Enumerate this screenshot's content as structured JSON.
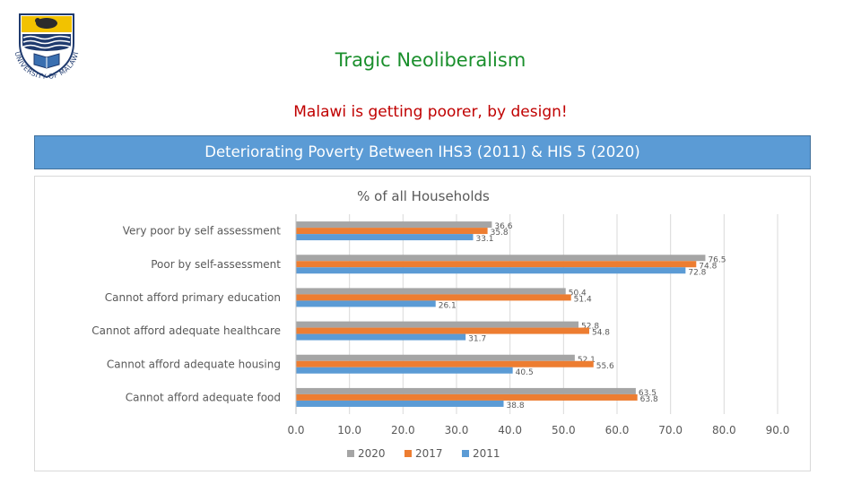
{
  "slide": {
    "title": "Tragic Neoliberalism",
    "subtitle": "Malawi is getting poorer, by design!",
    "banner": "Deteriorating Poverty Between IHS3 (2011) & HIS 5 (2020)"
  },
  "logo": {
    "text": "UNIVERSITY OF MALAWI",
    "icon": "university-crest-icon"
  },
  "colors": {
    "title": "#1a8f2c",
    "subtitle": "#c00000",
    "banner": "#5b9bd5"
  },
  "chart_data": {
    "type": "bar",
    "orientation": "horizontal",
    "title": "% of all Households",
    "categories": [
      "Very poor by self assessment",
      "Poor by self-assessment",
      "Cannot afford primary education",
      "Cannot afford adequate healthcare",
      "Cannot afford adequate housing",
      "Cannot afford adequate food"
    ],
    "series": [
      {
        "name": "2020",
        "color": "#a5a5a5",
        "values": [
          36.6,
          76.5,
          50.4,
          52.8,
          52.1,
          63.5
        ]
      },
      {
        "name": "2017",
        "color": "#ed7d31",
        "values": [
          35.8,
          74.8,
          51.4,
          54.8,
          55.6,
          63.8
        ]
      },
      {
        "name": "2011",
        "color": "#5b9bd5",
        "values": [
          33.1,
          72.8,
          26.1,
          31.7,
          40.5,
          38.8
        ]
      }
    ],
    "xlim": [
      0,
      90
    ],
    "xticks": [
      "0.0",
      "10.0",
      "20.0",
      "30.0",
      "40.0",
      "50.0",
      "60.0",
      "70.0",
      "80.0",
      "90.0"
    ],
    "legend_position": "bottom",
    "grid": true
  }
}
